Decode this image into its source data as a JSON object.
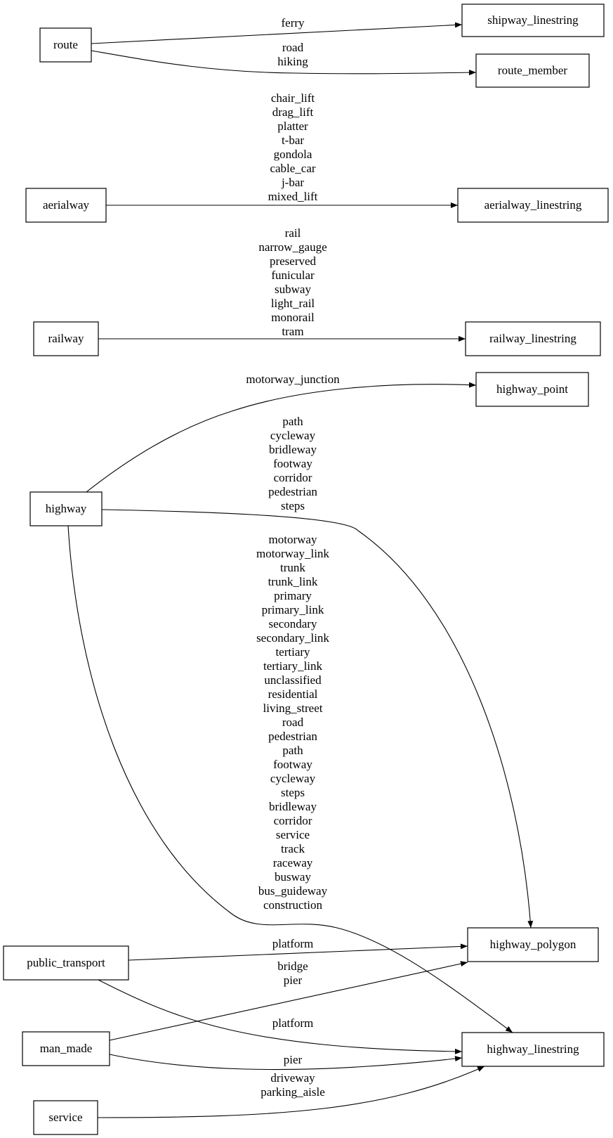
{
  "nodes": [
    {
      "id": "route",
      "label": "route"
    },
    {
      "id": "shipway_linestring",
      "label": "shipway_linestring"
    },
    {
      "id": "route_member",
      "label": "route_member"
    },
    {
      "id": "aerialway",
      "label": "aerialway"
    },
    {
      "id": "aerialway_linestring",
      "label": "aerialway_linestring"
    },
    {
      "id": "railway",
      "label": "railway"
    },
    {
      "id": "railway_linestring",
      "label": "railway_linestring"
    },
    {
      "id": "highway_point",
      "label": "highway_point"
    },
    {
      "id": "highway",
      "label": "highway"
    },
    {
      "id": "highway_polygon",
      "label": "highway_polygon"
    },
    {
      "id": "public_transport",
      "label": "public_transport"
    },
    {
      "id": "man_made",
      "label": "man_made"
    },
    {
      "id": "highway_linestring",
      "label": "highway_linestring"
    },
    {
      "id": "service",
      "label": "service"
    }
  ],
  "edges": [
    {
      "from": "route",
      "to": "shipway_linestring",
      "labels": [
        "ferry"
      ]
    },
    {
      "from": "route",
      "to": "route_member",
      "labels": [
        "road",
        "hiking"
      ]
    },
    {
      "from": "aerialway",
      "to": "aerialway_linestring",
      "labels": [
        "chair_lift",
        "drag_lift",
        "platter",
        "t-bar",
        "gondola",
        "cable_car",
        "j-bar",
        "mixed_lift"
      ]
    },
    {
      "from": "railway",
      "to": "railway_linestring",
      "labels": [
        "rail",
        "narrow_gauge",
        "preserved",
        "funicular",
        "subway",
        "light_rail",
        "monorail",
        "tram"
      ]
    },
    {
      "from": "highway",
      "to": "highway_point",
      "labels": [
        "motorway_junction"
      ]
    },
    {
      "from": "highway",
      "to": "highway_polygon",
      "labels": [
        "path",
        "cycleway",
        "bridleway",
        "footway",
        "corridor",
        "pedestrian",
        "steps"
      ]
    },
    {
      "from": "highway",
      "to": "highway_linestring",
      "labels": [
        "motorway",
        "motorway_link",
        "trunk",
        "trunk_link",
        "primary",
        "primary_link",
        "secondary",
        "secondary_link",
        "tertiary",
        "tertiary_link",
        "unclassified",
        "residential",
        "living_street",
        "road",
        "pedestrian",
        "path",
        "footway",
        "cycleway",
        "steps",
        "bridleway",
        "corridor",
        "service",
        "track",
        "raceway",
        "busway",
        "bus_guideway",
        "construction"
      ]
    },
    {
      "from": "public_transport",
      "to": "highway_polygon",
      "labels": [
        "platform"
      ]
    },
    {
      "from": "public_transport",
      "to": "highway_linestring",
      "labels": [
        "platform"
      ]
    },
    {
      "from": "man_made",
      "to": "highway_polygon",
      "labels": [
        "bridge",
        "pier"
      ]
    },
    {
      "from": "man_made",
      "to": "highway_linestring",
      "labels": [
        "pier"
      ]
    },
    {
      "from": "service",
      "to": "highway_linestring",
      "labels": [
        "driveway",
        "parking_aisle"
      ]
    }
  ]
}
